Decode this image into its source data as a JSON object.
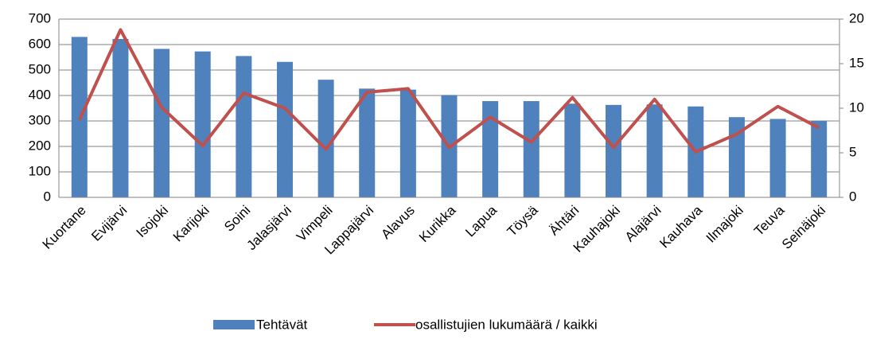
{
  "chart_data": {
    "type": "bar_line",
    "categories": [
      "Kuortane",
      "Evijärvi",
      "Isojoki",
      "Karijoki",
      "Soini",
      "Jalasjärvi",
      "Vimpeli",
      "Lappajärvi",
      "Alavus",
      "Kurikka",
      "Lapua",
      "Töysä",
      "Ähtäri",
      "Kauhajoki",
      "Alajärvi",
      "Kauhava",
      "Ilmajoki",
      "Teuva",
      "Seinäjoki"
    ],
    "series": [
      {
        "name": "Tehtävät",
        "type": "bar",
        "color": "#4f81bd",
        "values": [
          630,
          622,
          583,
          573,
          555,
          532,
          462,
          427,
          423,
          402,
          378,
          378,
          368,
          363,
          365,
          357,
          315,
          308,
          300
        ]
      },
      {
        "name": "osallistujien lukumäärä / kaikki",
        "type": "line",
        "axis": "y2",
        "color": "#c0504d",
        "values": [
          8.7,
          18.8,
          10.1,
          5.8,
          11.7,
          10.0,
          5.4,
          11.8,
          12.2,
          5.6,
          9.0,
          6.2,
          11.2,
          5.6,
          11.0,
          5.1,
          7.1,
          10.2,
          7.8
        ]
      }
    ],
    "ylim": [
      0,
      700
    ],
    "yticks": [
      0,
      100,
      200,
      300,
      400,
      500,
      600,
      700
    ],
    "y2lim": [
      0,
      20
    ],
    "y2ticks": [
      0,
      5,
      10,
      15,
      20
    ],
    "grid": true,
    "legend": "bottom"
  }
}
